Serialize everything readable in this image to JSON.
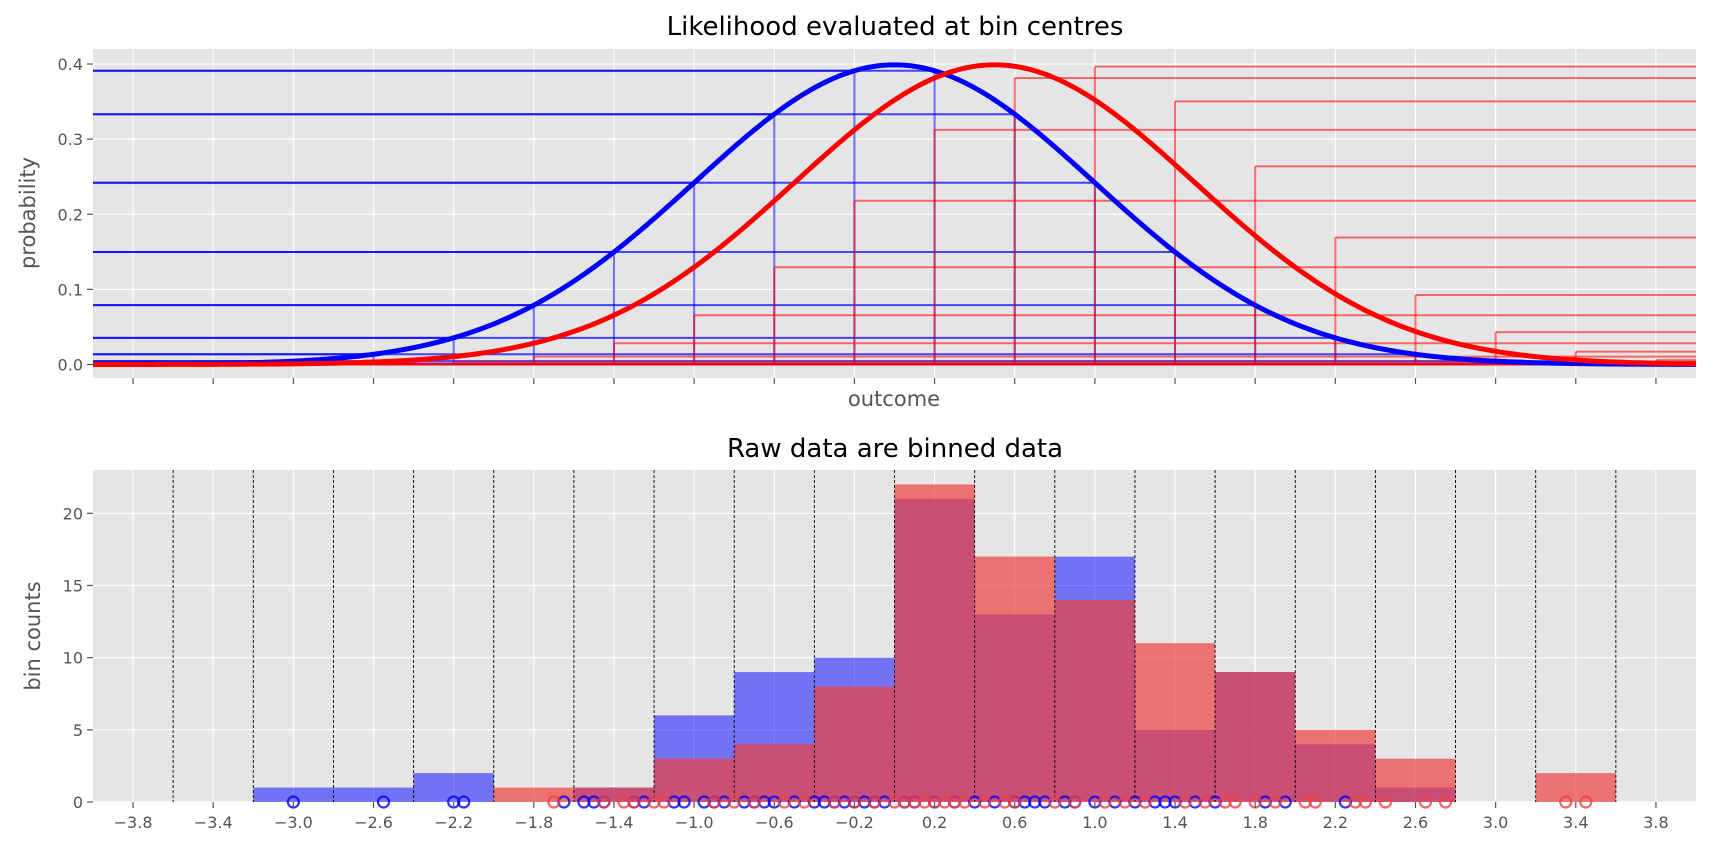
{
  "chart_data": [
    {
      "type": "line",
      "title": "Likelihood evaluated at bin centres",
      "xlabel": "outcome",
      "ylabel": "probability",
      "xlim": [
        -4.0,
        4.0
      ],
      "ylim": [
        -0.018,
        0.42
      ],
      "yticks": [
        0.0,
        0.1,
        0.2,
        0.3,
        0.4
      ],
      "ytick_labels": [
        "0.0",
        "0.1",
        "0.2",
        "0.3",
        "0.4"
      ],
      "xticks": [
        -3.8,
        -3.4,
        -3.0,
        -2.6,
        -2.2,
        -1.8,
        -1.4,
        -1.0,
        -0.6,
        -0.2,
        0.2,
        0.6,
        1.0,
        1.4,
        1.8,
        2.2,
        2.6,
        3.0,
        3.4,
        3.8
      ],
      "xtick_labels_visible": false,
      "grid": true,
      "background": "#e5e5e5",
      "bin_centres": [
        -3.8,
        -3.4,
        -3.0,
        -2.6,
        -2.2,
        -1.8,
        -1.4,
        -1.0,
        -0.6,
        -0.2,
        0.2,
        0.6,
        1.0,
        1.4,
        1.8,
        2.2,
        2.6,
        3.0,
        3.4,
        3.8
      ],
      "series": [
        {
          "color": "#0000ff",
          "curve": "normal pdf",
          "mean": 0.0,
          "sd": 1.0,
          "values_at_bin_centres": [
            0.0003,
            0.0012,
            0.0044,
            0.0136,
            0.0355,
            0.079,
            0.1497,
            0.242,
            0.3332,
            0.391,
            0.391,
            0.3332,
            0.242,
            0.1497,
            0.079,
            0.0355,
            0.0136,
            0.0044,
            0.0012,
            0.0003
          ]
        },
        {
          "color": "#ff0000",
          "curve": "normal pdf",
          "mean": 0.5,
          "sd": 1.0,
          "values_at_bin_centres": [
            1e-05,
            4e-05,
            0.0002,
            0.0009,
            0.0034,
            0.0104,
            0.0283,
            0.0656,
            0.1295,
            0.2179,
            0.3123,
            0.3814,
            0.3965,
            0.3503,
            0.2637,
            0.1691,
            0.0925,
            0.0431,
            0.0171,
            0.0058
          ]
        }
      ]
    },
    {
      "type": "bar",
      "title": "Raw data are binned data",
      "xlabel": "",
      "ylabel": "bin counts",
      "xlim": [
        -4.0,
        4.0
      ],
      "ylim": [
        0,
        23
      ],
      "yticks": [
        0,
        5,
        10,
        15,
        20
      ],
      "ytick_labels": [
        "0",
        "5",
        "10",
        "15",
        "20"
      ],
      "xticks": [
        -3.8,
        -3.4,
        -3.0,
        -2.6,
        -2.2,
        -1.8,
        -1.4,
        -1.0,
        -0.6,
        -0.2,
        0.2,
        0.6,
        1.0,
        1.4,
        1.8,
        2.2,
        2.6,
        3.0,
        3.4,
        3.8
      ],
      "xtick_labels": [
        "−3.8",
        "−3.4",
        "−3.0",
        "−2.6",
        "−2.2",
        "−1.8",
        "−1.4",
        "−1.0",
        "−0.6",
        "−0.2",
        "0.2",
        "0.6",
        "1.0",
        "1.4",
        "1.8",
        "2.2",
        "2.6",
        "3.0",
        "3.4",
        "3.8"
      ],
      "bin_edges": [
        -3.6,
        -3.2,
        -2.8,
        -2.4,
        -2.0,
        -1.6,
        -1.2,
        -0.8,
        -0.4,
        0.0,
        0.4,
        0.8,
        1.2,
        1.6,
        2.0,
        2.4,
        2.8,
        3.2,
        3.6
      ],
      "grid": true,
      "background": "#e5e5e5",
      "series": [
        {
          "color": "#0000ff",
          "opacity": 0.5,
          "counts": [
            0,
            1,
            1,
            2,
            0,
            1,
            6,
            9,
            10,
            21,
            13,
            17,
            5,
            9,
            4,
            1,
            0,
            0,
            0
          ],
          "raw_points": [
            -3.0,
            -2.55,
            -2.2,
            -2.15,
            -1.65,
            -1.55,
            -1.5,
            -1.45,
            -1.3,
            -1.25,
            -1.1,
            -1.05,
            -0.95,
            -0.9,
            -0.85,
            -0.75,
            -0.7,
            -0.65,
            -0.6,
            -0.5,
            -0.4,
            -0.35,
            -0.3,
            -0.25,
            -0.2,
            -0.15,
            -0.1,
            -0.05,
            0.05,
            0.1,
            0.2,
            0.3,
            0.4,
            0.5,
            0.6,
            0.65,
            0.7,
            0.75,
            0.85,
            0.9,
            1.0,
            1.1,
            1.2,
            1.3,
            1.35,
            1.4,
            1.5,
            1.6,
            1.85,
            1.95,
            2.25
          ]
        },
        {
          "color": "#f04040",
          "opacity": 0.7,
          "counts": [
            0,
            0,
            0,
            0,
            1,
            1,
            3,
            4,
            8,
            22,
            17,
            14,
            11,
            9,
            5,
            3,
            0,
            2,
            0
          ],
          "raw_points": [
            -1.7,
            -1.45,
            -1.35,
            -1.3,
            -1.2,
            -1.15,
            -0.9,
            -0.8,
            -0.7,
            -0.55,
            -0.45,
            -0.3,
            -0.2,
            -0.1,
            0.0,
            0.05,
            0.1,
            0.15,
            0.2,
            0.25,
            0.3,
            0.35,
            0.45,
            0.55,
            0.6,
            0.8,
            0.9,
            1.05,
            1.15,
            1.25,
            1.45,
            1.55,
            1.65,
            1.7,
            1.8,
            1.9,
            2.05,
            2.1,
            2.3,
            2.35,
            2.45,
            2.65,
            2.75,
            3.35,
            3.45
          ]
        }
      ]
    }
  ]
}
